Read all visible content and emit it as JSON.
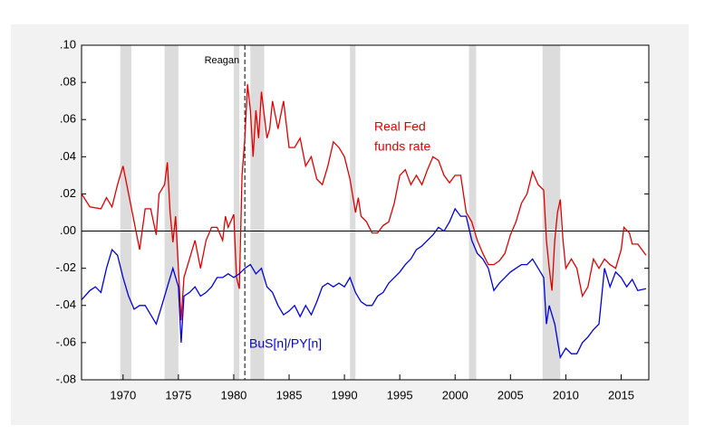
{
  "chart_data": {
    "type": "line",
    "xlim": [
      1966.25,
      2017.5
    ],
    "xticks": [
      1970,
      1975,
      1980,
      1985,
      1990,
      1995,
      2000,
      2005,
      2010,
      2015
    ],
    "ylim": [
      -0.08,
      0.1
    ],
    "yticks": [
      {
        "value": -0.08,
        "label": "-.08"
      },
      {
        "value": -0.06,
        "label": "-.06"
      },
      {
        "value": -0.04,
        "label": "-.04"
      },
      {
        "value": -0.02,
        "label": "-.02"
      },
      {
        "value": 0,
        "label": ".00"
      },
      {
        "value": 0.02,
        "label": ".02"
      },
      {
        "value": 0.04,
        "label": ".04"
      },
      {
        "value": 0.06,
        "label": ".06"
      },
      {
        "value": 0.08,
        "label": ".08"
      },
      {
        "value": 0.1,
        "label": ".10"
      }
    ],
    "zero_line": true,
    "shaded_periods": [
      [
        1969.75,
        1970.75
      ],
      [
        1973.75,
        1975.0
      ],
      [
        1980.0,
        1980.5
      ],
      [
        1981.5,
        1982.75
      ],
      [
        1990.5,
        1991.0
      ],
      [
        2001.25,
        2001.9
      ],
      [
        2007.9,
        2009.5
      ]
    ],
    "vline": {
      "x": 1981.0,
      "label": "Reagan"
    },
    "series": [
      {
        "name": "Real Fed funds rate",
        "label": [
          "Real Fed",
          "funds rate"
        ],
        "color": "#e00000",
        "x": [
          1966.25,
          1967,
          1968,
          1968.5,
          1969,
          1969.5,
          1970,
          1970.5,
          1971,
          1971.5,
          1972,
          1972.5,
          1973,
          1973.25,
          1973.75,
          1974,
          1974.25,
          1974.5,
          1974.75,
          1975.25,
          1975.5,
          1976,
          1976.5,
          1977,
          1977.5,
          1978,
          1978.5,
          1979,
          1979.25,
          1979.5,
          1980,
          1980.25,
          1980.5,
          1980.75,
          1981,
          1981.25,
          1981.5,
          1981.75,
          1982,
          1982.25,
          1982.5,
          1983,
          1983.25,
          1983.5,
          1984,
          1984.5,
          1985,
          1985.5,
          1986,
          1986.5,
          1987,
          1987.5,
          1988,
          1988.5,
          1989,
          1989.5,
          1990,
          1990.5,
          1991,
          1991.25,
          1991.5,
          1992,
          1992.5,
          1993,
          1993.5,
          1994,
          1994.5,
          1995,
          1995.5,
          1996,
          1996.5,
          1997,
          1997.5,
          1998,
          1998.5,
          1999,
          1999.5,
          2000,
          2000.5,
          2001,
          2001.5,
          2002,
          2002.5,
          2003,
          2003.5,
          2004,
          2004.5,
          2005,
          2005.5,
          2006,
          2006.5,
          2007,
          2007.5,
          2008,
          2008.25,
          2008.5,
          2008.75,
          2009,
          2009.25,
          2009.5,
          2009.75,
          2010,
          2010.5,
          2011,
          2011.5,
          2012,
          2012.5,
          2013,
          2013.5,
          2014,
          2014.5,
          2015,
          2015.25,
          2015.75,
          2016,
          2016.5,
          2017.25
        ],
        "values": [
          0.02,
          0.013,
          0.012,
          0.018,
          0.013,
          0.025,
          0.035,
          0.02,
          0.005,
          -0.01,
          0.012,
          0.012,
          -0.002,
          0.02,
          0.025,
          0.037,
          0.01,
          -0.006,
          0.008,
          -0.048,
          -0.025,
          -0.015,
          -0.005,
          -0.02,
          -0.005,
          0.002,
          0.002,
          -0.005,
          0.008,
          0.002,
          0.009,
          -0.025,
          -0.031,
          0.03,
          0.05,
          0.079,
          0.065,
          0.04,
          0.065,
          0.05,
          0.075,
          0.05,
          0.055,
          0.07,
          0.055,
          0.07,
          0.045,
          0.045,
          0.05,
          0.035,
          0.04,
          0.028,
          0.025,
          0.035,
          0.048,
          0.045,
          0.04,
          0.028,
          0.01,
          0.018,
          0.008,
          0.005,
          -0.001,
          -0.001,
          0.003,
          0.005,
          0.015,
          0.03,
          0.033,
          0.025,
          0.03,
          0.025,
          0.033,
          0.04,
          0.038,
          0.03,
          0.026,
          0.03,
          0.03,
          0.01,
          0.005,
          -0.005,
          -0.012,
          -0.018,
          -0.018,
          -0.016,
          -0.012,
          -0.002,
          0.005,
          0.015,
          0.02,
          0.032,
          0.025,
          0.022,
          -0.005,
          -0.02,
          -0.032,
          -0.005,
          0.01,
          0.017,
          -0.005,
          -0.02,
          -0.015,
          -0.02,
          -0.035,
          -0.03,
          -0.015,
          -0.02,
          -0.015,
          -0.018,
          -0.02,
          -0.01,
          0.002,
          -0.001,
          -0.007,
          -0.007,
          -0.013
        ]
      },
      {
        "name": "BuS[n]/PY[n]",
        "color": "#0000e0",
        "x": [
          1966.25,
          1967,
          1967.5,
          1968,
          1968.5,
          1969,
          1969.5,
          1970,
          1970.5,
          1971,
          1971.5,
          1972,
          1972.5,
          1973,
          1973.5,
          1974,
          1974.5,
          1975,
          1975.25,
          1975.5,
          1976,
          1976.5,
          1977,
          1977.5,
          1978,
          1978.5,
          1979,
          1979.5,
          1980,
          1980.5,
          1981,
          1981.5,
          1982,
          1982.5,
          1983,
          1983.5,
          1984,
          1984.5,
          1985,
          1985.5,
          1986,
          1986.5,
          1987,
          1987.5,
          1988,
          1988.5,
          1989,
          1989.5,
          1990,
          1990.5,
          1991,
          1991.5,
          1992,
          1992.5,
          1993,
          1993.5,
          1994,
          1994.5,
          1995,
          1995.5,
          1996,
          1996.5,
          1997,
          1997.5,
          1998,
          1998.5,
          1999,
          1999.5,
          2000,
          2000.5,
          2001,
          2001.5,
          2002,
          2002.5,
          2003,
          2003.5,
          2004,
          2004.5,
          2005,
          2005.5,
          2006,
          2006.5,
          2007,
          2007.5,
          2008,
          2008.25,
          2008.5,
          2009,
          2009.5,
          2010,
          2010.5,
          2011,
          2011.5,
          2012,
          2012.5,
          2013,
          2013.5,
          2014,
          2014.5,
          2015,
          2015.5,
          2016,
          2016.5,
          2017.25
        ],
        "values": [
          -0.037,
          -0.032,
          -0.03,
          -0.033,
          -0.02,
          -0.01,
          -0.013,
          -0.025,
          -0.035,
          -0.042,
          -0.04,
          -0.04,
          -0.045,
          -0.05,
          -0.04,
          -0.03,
          -0.02,
          -0.03,
          -0.06,
          -0.035,
          -0.033,
          -0.03,
          -0.035,
          -0.033,
          -0.03,
          -0.025,
          -0.025,
          -0.023,
          -0.025,
          -0.023,
          -0.02,
          -0.018,
          -0.023,
          -0.02,
          -0.03,
          -0.033,
          -0.04,
          -0.045,
          -0.043,
          -0.04,
          -0.046,
          -0.04,
          -0.045,
          -0.038,
          -0.03,
          -0.028,
          -0.03,
          -0.028,
          -0.03,
          -0.025,
          -0.033,
          -0.038,
          -0.04,
          -0.04,
          -0.035,
          -0.033,
          -0.028,
          -0.025,
          -0.022,
          -0.018,
          -0.015,
          -0.01,
          -0.008,
          -0.005,
          -0.002,
          0.002,
          0.0,
          0.005,
          0.012,
          0.008,
          0.008,
          -0.005,
          -0.012,
          -0.015,
          -0.02,
          -0.032,
          -0.028,
          -0.025,
          -0.022,
          -0.02,
          -0.018,
          -0.018,
          -0.015,
          -0.02,
          -0.025,
          -0.05,
          -0.04,
          -0.05,
          -0.068,
          -0.063,
          -0.066,
          -0.066,
          -0.06,
          -0.057,
          -0.053,
          -0.05,
          -0.02,
          -0.03,
          -0.022,
          -0.025,
          -0.03,
          -0.026,
          -0.032,
          -0.031
        ]
      }
    ]
  }
}
